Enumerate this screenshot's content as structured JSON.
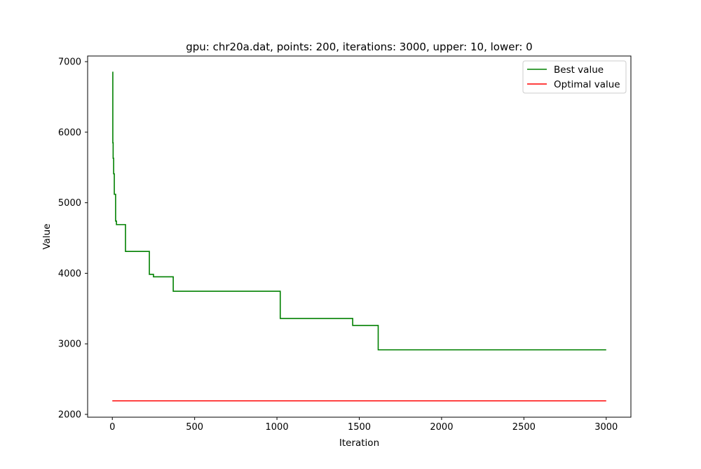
{
  "chart_data": {
    "type": "line",
    "title": "gpu: chr20a.dat, points: 200, iterations: 3000, upper: 10, lower: 0",
    "xlabel": "Iteration",
    "ylabel": "Value",
    "xlim": [
      -150,
      3150
    ],
    "ylim": [
      1960,
      7080
    ],
    "xticks": [
      0,
      500,
      1000,
      1500,
      2000,
      2500,
      3000
    ],
    "yticks": [
      2000,
      3000,
      4000,
      5000,
      6000,
      7000
    ],
    "grid": false,
    "legend_position": "top-right",
    "series": [
      {
        "name": "Best value",
        "color": "#008000",
        "step": true,
        "x": [
          0,
          3,
          5,
          8,
          12,
          20,
          25,
          80,
          225,
          250,
          370,
          1020,
          1460,
          1615,
          3000
        ],
        "y": [
          6850,
          5850,
          5630,
          5410,
          5120,
          4740,
          4690,
          4310,
          3985,
          3950,
          3745,
          3360,
          3260,
          2915,
          2915
        ]
      },
      {
        "name": "Optimal value",
        "color": "#ff0000",
        "step": false,
        "x": [
          0,
          3000
        ],
        "y": [
          2192,
          2192
        ]
      }
    ]
  }
}
